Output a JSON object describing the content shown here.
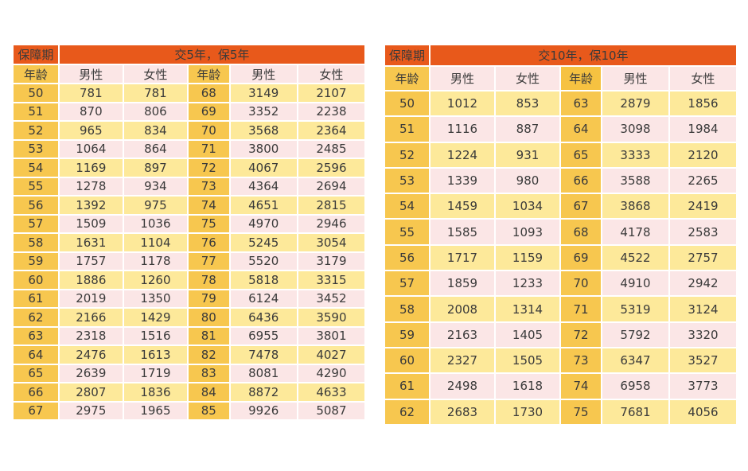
{
  "colors": {
    "header": "#e8591b",
    "age": "#f7c74f",
    "row_pink": "#fbe6e6",
    "row_yellow": "#fde99a"
  },
  "table_a": {
    "corner_label": "保障期",
    "title": "交5年，保5年",
    "sub_headers": [
      "年龄",
      "男性",
      "女性",
      "年龄",
      "男性",
      "女性"
    ],
    "rows": [
      [
        "50",
        "781",
        "781",
        "68",
        "3149",
        "2107"
      ],
      [
        "51",
        "870",
        "806",
        "69",
        "3352",
        "2238"
      ],
      [
        "52",
        "965",
        "834",
        "70",
        "3568",
        "2364"
      ],
      [
        "53",
        "1064",
        "864",
        "71",
        "3800",
        "2485"
      ],
      [
        "54",
        "1169",
        "897",
        "72",
        "4067",
        "2596"
      ],
      [
        "55",
        "1278",
        "934",
        "73",
        "4364",
        "2694"
      ],
      [
        "56",
        "1392",
        "975",
        "74",
        "4651",
        "2815"
      ],
      [
        "57",
        "1509",
        "1036",
        "75",
        "4970",
        "2946"
      ],
      [
        "58",
        "1631",
        "1104",
        "76",
        "5245",
        "3054"
      ],
      [
        "59",
        "1757",
        "1178",
        "77",
        "5520",
        "3179"
      ],
      [
        "60",
        "1886",
        "1260",
        "78",
        "5818",
        "3315"
      ],
      [
        "61",
        "2019",
        "1350",
        "79",
        "6124",
        "3452"
      ],
      [
        "62",
        "2166",
        "1429",
        "80",
        "6436",
        "3590"
      ],
      [
        "63",
        "2318",
        "1516",
        "81",
        "6955",
        "3801"
      ],
      [
        "64",
        "2476",
        "1613",
        "82",
        "7478",
        "4027"
      ],
      [
        "65",
        "2639",
        "1719",
        "83",
        "8081",
        "4290"
      ],
      [
        "66",
        "2807",
        "1836",
        "84",
        "8872",
        "4633"
      ],
      [
        "67",
        "2975",
        "1965",
        "85",
        "9926",
        "5087"
      ]
    ]
  },
  "table_b": {
    "corner_label": "保障期",
    "title": "交10年，保10年",
    "sub_headers": [
      "年龄",
      "男性",
      "女性",
      "年龄",
      "男性",
      "女性"
    ],
    "rows": [
      [
        "50",
        "1012",
        "853",
        "63",
        "2879",
        "1856"
      ],
      [
        "51",
        "1116",
        "887",
        "64",
        "3098",
        "1984"
      ],
      [
        "52",
        "1224",
        "931",
        "65",
        "3333",
        "2120"
      ],
      [
        "53",
        "1339",
        "980",
        "66",
        "3588",
        "2265"
      ],
      [
        "54",
        "1459",
        "1034",
        "67",
        "3868",
        "2419"
      ],
      [
        "55",
        "1585",
        "1093",
        "68",
        "4178",
        "2583"
      ],
      [
        "56",
        "1717",
        "1159",
        "69",
        "4522",
        "2757"
      ],
      [
        "57",
        "1859",
        "1233",
        "70",
        "4910",
        "2942"
      ],
      [
        "58",
        "2008",
        "1314",
        "71",
        "5319",
        "3124"
      ],
      [
        "59",
        "2163",
        "1405",
        "72",
        "5792",
        "3320"
      ],
      [
        "60",
        "2327",
        "1505",
        "73",
        "6347",
        "3527"
      ],
      [
        "61",
        "2498",
        "1618",
        "74",
        "6958",
        "3773"
      ],
      [
        "62",
        "2683",
        "1730",
        "75",
        "7681",
        "4056"
      ]
    ]
  }
}
